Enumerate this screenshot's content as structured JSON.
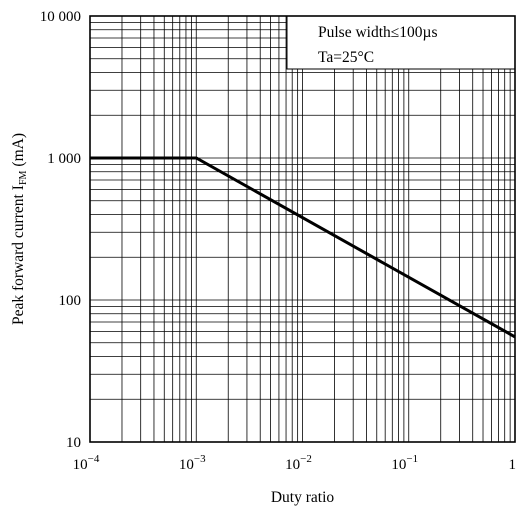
{
  "chart_data": {
    "type": "line",
    "xlabel": "Duty ratio",
    "ylabel": "Peak forward current",
    "ylabel_symbol": "I",
    "ylabel_subscript": "FM",
    "ylabel_unit": "(mA)",
    "x_scale": "log",
    "y_scale": "log",
    "xlim": [
      0.0001,
      1
    ],
    "ylim": [
      10,
      10000
    ],
    "grid": true,
    "x_ticks": [
      {
        "value": 0.0001,
        "base": "10",
        "exp": "−4"
      },
      {
        "value": 0.001,
        "base": "10",
        "exp": "−3"
      },
      {
        "value": 0.01,
        "base": "10",
        "exp": "−2"
      },
      {
        "value": 0.1,
        "base": "10",
        "exp": "−1"
      },
      {
        "value": 1,
        "base": "1",
        "exp": ""
      }
    ],
    "y_ticks": [
      {
        "value": 10,
        "label": "10"
      },
      {
        "value": 100,
        "label": "100"
      },
      {
        "value": 1000,
        "label": "1 000"
      },
      {
        "value": 10000,
        "label": "10 000"
      }
    ],
    "series": [
      {
        "x": [
          0.0001,
          0.001,
          1
        ],
        "y": [
          1000,
          1000,
          55
        ]
      }
    ],
    "legend_placement": "top-right",
    "annotation_lines": [
      "Pulse width≤100µs",
      "Ta=25°C"
    ]
  }
}
